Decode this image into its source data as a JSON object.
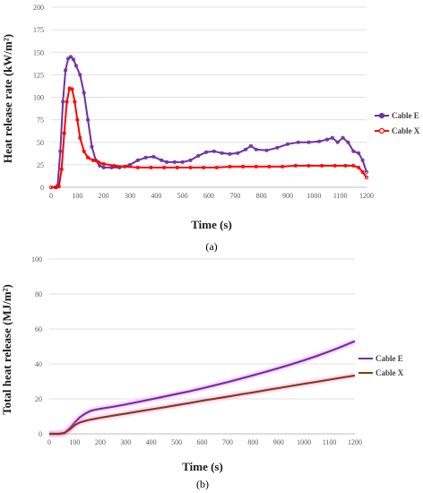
{
  "colors": {
    "cable_e_top": "#7030a0",
    "cable_x_top": "#ff0000",
    "cable_e_bottom": "#7030a0",
    "cable_x_bottom": "#843c0c",
    "bottom_glow": "#ff66ff"
  },
  "chart_data": [
    {
      "type": "line",
      "panel_label": "(a)",
      "xlabel": "Time (s)",
      "ylabel": "Heat release rate (kW/m²)",
      "xlim": [
        0,
        1200
      ],
      "ylim": [
        0,
        200
      ],
      "xticks": [
        0,
        100,
        200,
        300,
        400,
        500,
        600,
        700,
        800,
        900,
        1000,
        1100,
        1200
      ],
      "yticks": [
        0,
        25,
        50,
        75,
        100,
        125,
        150,
        175,
        200
      ],
      "grid": "horizontal",
      "legend": "right",
      "markers": true,
      "series": [
        {
          "name": "Cable E",
          "x": [
            0,
            15,
            25,
            35,
            45,
            55,
            65,
            75,
            85,
            95,
            110,
            125,
            140,
            155,
            170,
            185,
            200,
            230,
            260,
            300,
            330,
            360,
            390,
            420,
            440,
            470,
            500,
            530,
            560,
            590,
            620,
            650,
            680,
            710,
            740,
            760,
            780,
            820,
            860,
            900,
            940,
            980,
            1020,
            1050,
            1070,
            1090,
            1110,
            1130,
            1150,
            1170,
            1185,
            1200
          ],
          "y": [
            0,
            0,
            2,
            40,
            95,
            130,
            143,
            145,
            142,
            135,
            125,
            105,
            75,
            45,
            30,
            24,
            22,
            22,
            22,
            25,
            30,
            33,
            34,
            30,
            28,
            28,
            28,
            30,
            35,
            39,
            40,
            38,
            37,
            38,
            42,
            46,
            42,
            41,
            44,
            48,
            50,
            50,
            51,
            53,
            55,
            50,
            55,
            50,
            40,
            38,
            30,
            17
          ]
        },
        {
          "name": "Cable X",
          "x": [
            0,
            20,
            30,
            40,
            50,
            60,
            70,
            80,
            90,
            100,
            110,
            125,
            140,
            160,
            180,
            200,
            240,
            280,
            330,
            380,
            430,
            480,
            530,
            580,
            630,
            680,
            730,
            780,
            830,
            880,
            930,
            980,
            1030,
            1080,
            1120,
            1150,
            1170,
            1185,
            1200
          ],
          "y": [
            0,
            0,
            1,
            20,
            60,
            95,
            110,
            109,
            95,
            75,
            55,
            40,
            33,
            30,
            28,
            26,
            24,
            23,
            22,
            22,
            22,
            22,
            22,
            22,
            22,
            23,
            23,
            23,
            23,
            23,
            24,
            24,
            24,
            24,
            24,
            24,
            22,
            17,
            11
          ]
        }
      ]
    },
    {
      "type": "line",
      "panel_label": "(b)",
      "xlabel": "Time (s)",
      "ylabel": "Total heat release (MJ/m²)",
      "xlim": [
        0,
        1200
      ],
      "ylim": [
        0,
        100
      ],
      "xticks": [
        0,
        100,
        200,
        300,
        400,
        500,
        600,
        700,
        800,
        900,
        1000,
        1100,
        1200
      ],
      "yticks": [
        0,
        20,
        40,
        60,
        80,
        100
      ],
      "grid": "horizontal",
      "legend": "right",
      "markers": false,
      "series": [
        {
          "name": "Cable E",
          "x": [
            0,
            40,
            60,
            80,
            100,
            120,
            140,
            160,
            180,
            200,
            250,
            300,
            350,
            400,
            450,
            500,
            550,
            600,
            650,
            700,
            750,
            800,
            850,
            900,
            950,
            1000,
            1050,
            1100,
            1150,
            1200
          ],
          "y": [
            0,
            0,
            0.5,
            3,
            6.5,
            9.5,
            11.5,
            13,
            13.8,
            14.3,
            15.5,
            16.8,
            18.3,
            19.8,
            21.3,
            22.8,
            24.3,
            26,
            27.8,
            29.6,
            31.5,
            33.5,
            35.5,
            37.6,
            39.8,
            42.1,
            44.5,
            47.2,
            50,
            53
          ]
        },
        {
          "name": "Cable X",
          "x": [
            0,
            40,
            60,
            80,
            100,
            120,
            150,
            200,
            250,
            300,
            350,
            400,
            450,
            500,
            550,
            600,
            650,
            700,
            750,
            800,
            850,
            900,
            950,
            1000,
            1050,
            1100,
            1150,
            1200
          ],
          "y": [
            0,
            0,
            0.5,
            2.5,
            5,
            6.5,
            7.8,
            9.2,
            10.4,
            11.6,
            12.8,
            14,
            15.2,
            16.4,
            17.6,
            18.9,
            20.1,
            21.3,
            22.5,
            23.7,
            25,
            26.2,
            27.4,
            28.6,
            29.8,
            31,
            32.2,
            33.4
          ]
        }
      ]
    }
  ]
}
